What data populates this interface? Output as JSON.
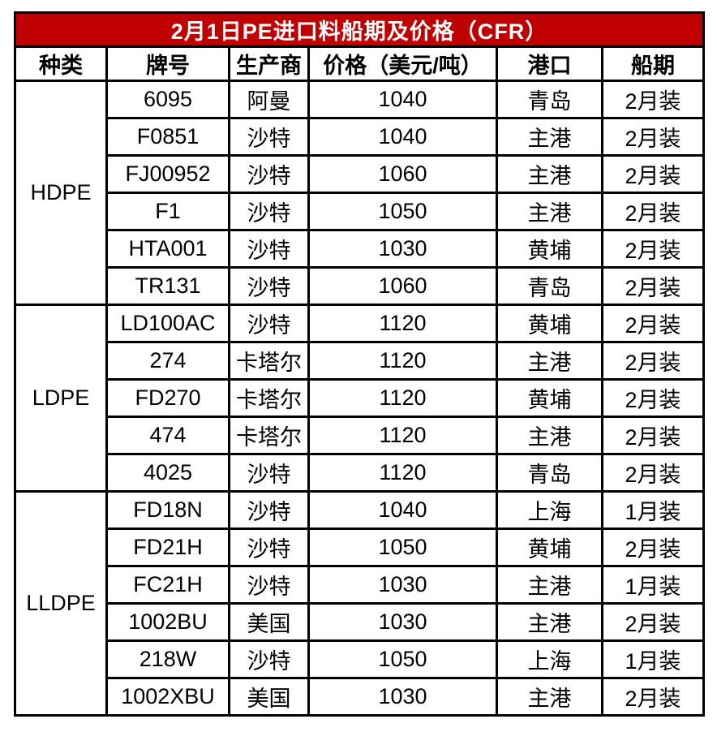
{
  "title": "2月1日PE进口料船期及价格（CFR）",
  "colors": {
    "title_bg": "#C00000",
    "title_text": "#FFFFFF",
    "border": "#000000"
  },
  "columns": [
    "种类",
    "牌号",
    "生产商",
    "价格（美元/吨）",
    "港口",
    "船期"
  ],
  "column_keys": [
    "category",
    "grade",
    "producer",
    "price",
    "port",
    "shipment"
  ],
  "groups": [
    {
      "category": "HDPE",
      "rows": [
        {
          "grade": "6095",
          "producer": "阿曼",
          "price": "1040",
          "port": "青岛",
          "shipment": "2月装"
        },
        {
          "grade": "F0851",
          "producer": "沙特",
          "price": "1040",
          "port": "主港",
          "shipment": "2月装"
        },
        {
          "grade": "FJ00952",
          "producer": "沙特",
          "price": "1060",
          "port": "主港",
          "shipment": "2月装"
        },
        {
          "grade": "F1",
          "producer": "沙特",
          "price": "1050",
          "port": "主港",
          "shipment": "2月装"
        },
        {
          "grade": "HTA001",
          "producer": "沙特",
          "price": "1030",
          "port": "黄埔",
          "shipment": "2月装"
        },
        {
          "grade": "TR131",
          "producer": "沙特",
          "price": "1060",
          "port": "青岛",
          "shipment": "2月装"
        }
      ]
    },
    {
      "category": "LDPE",
      "rows": [
        {
          "grade": "LD100AC",
          "producer": "沙特",
          "price": "1120",
          "port": "黄埔",
          "shipment": "2月装"
        },
        {
          "grade": "274",
          "producer": "卡塔尔",
          "price": "1120",
          "port": "主港",
          "shipment": "2月装"
        },
        {
          "grade": "FD270",
          "producer": "卡塔尔",
          "price": "1120",
          "port": "黄埔",
          "shipment": "2月装"
        },
        {
          "grade": "474",
          "producer": "卡塔尔",
          "price": "1120",
          "port": "主港",
          "shipment": "2月装"
        },
        {
          "grade": "4025",
          "producer": "沙特",
          "price": "1120",
          "port": "青岛",
          "shipment": "2月装"
        }
      ]
    },
    {
      "category": "LLDPE",
      "rows": [
        {
          "grade": "FD18N",
          "producer": "沙特",
          "price": "1040",
          "port": "上海",
          "shipment": "1月装"
        },
        {
          "grade": "FD21H",
          "producer": "沙特",
          "price": "1050",
          "port": "黄埔",
          "shipment": "2月装"
        },
        {
          "grade": "FC21H",
          "producer": "沙特",
          "price": "1030",
          "port": "主港",
          "shipment": "1月装"
        },
        {
          "grade": "1002BU",
          "producer": "美国",
          "price": "1030",
          "port": "主港",
          "shipment": "2月装"
        },
        {
          "grade": "218W",
          "producer": "沙特",
          "price": "1050",
          "port": "上海",
          "shipment": "1月装"
        },
        {
          "grade": "1002XBU",
          "producer": "美国",
          "price": "1030",
          "port": "主港",
          "shipment": "2月装"
        }
      ]
    }
  ]
}
